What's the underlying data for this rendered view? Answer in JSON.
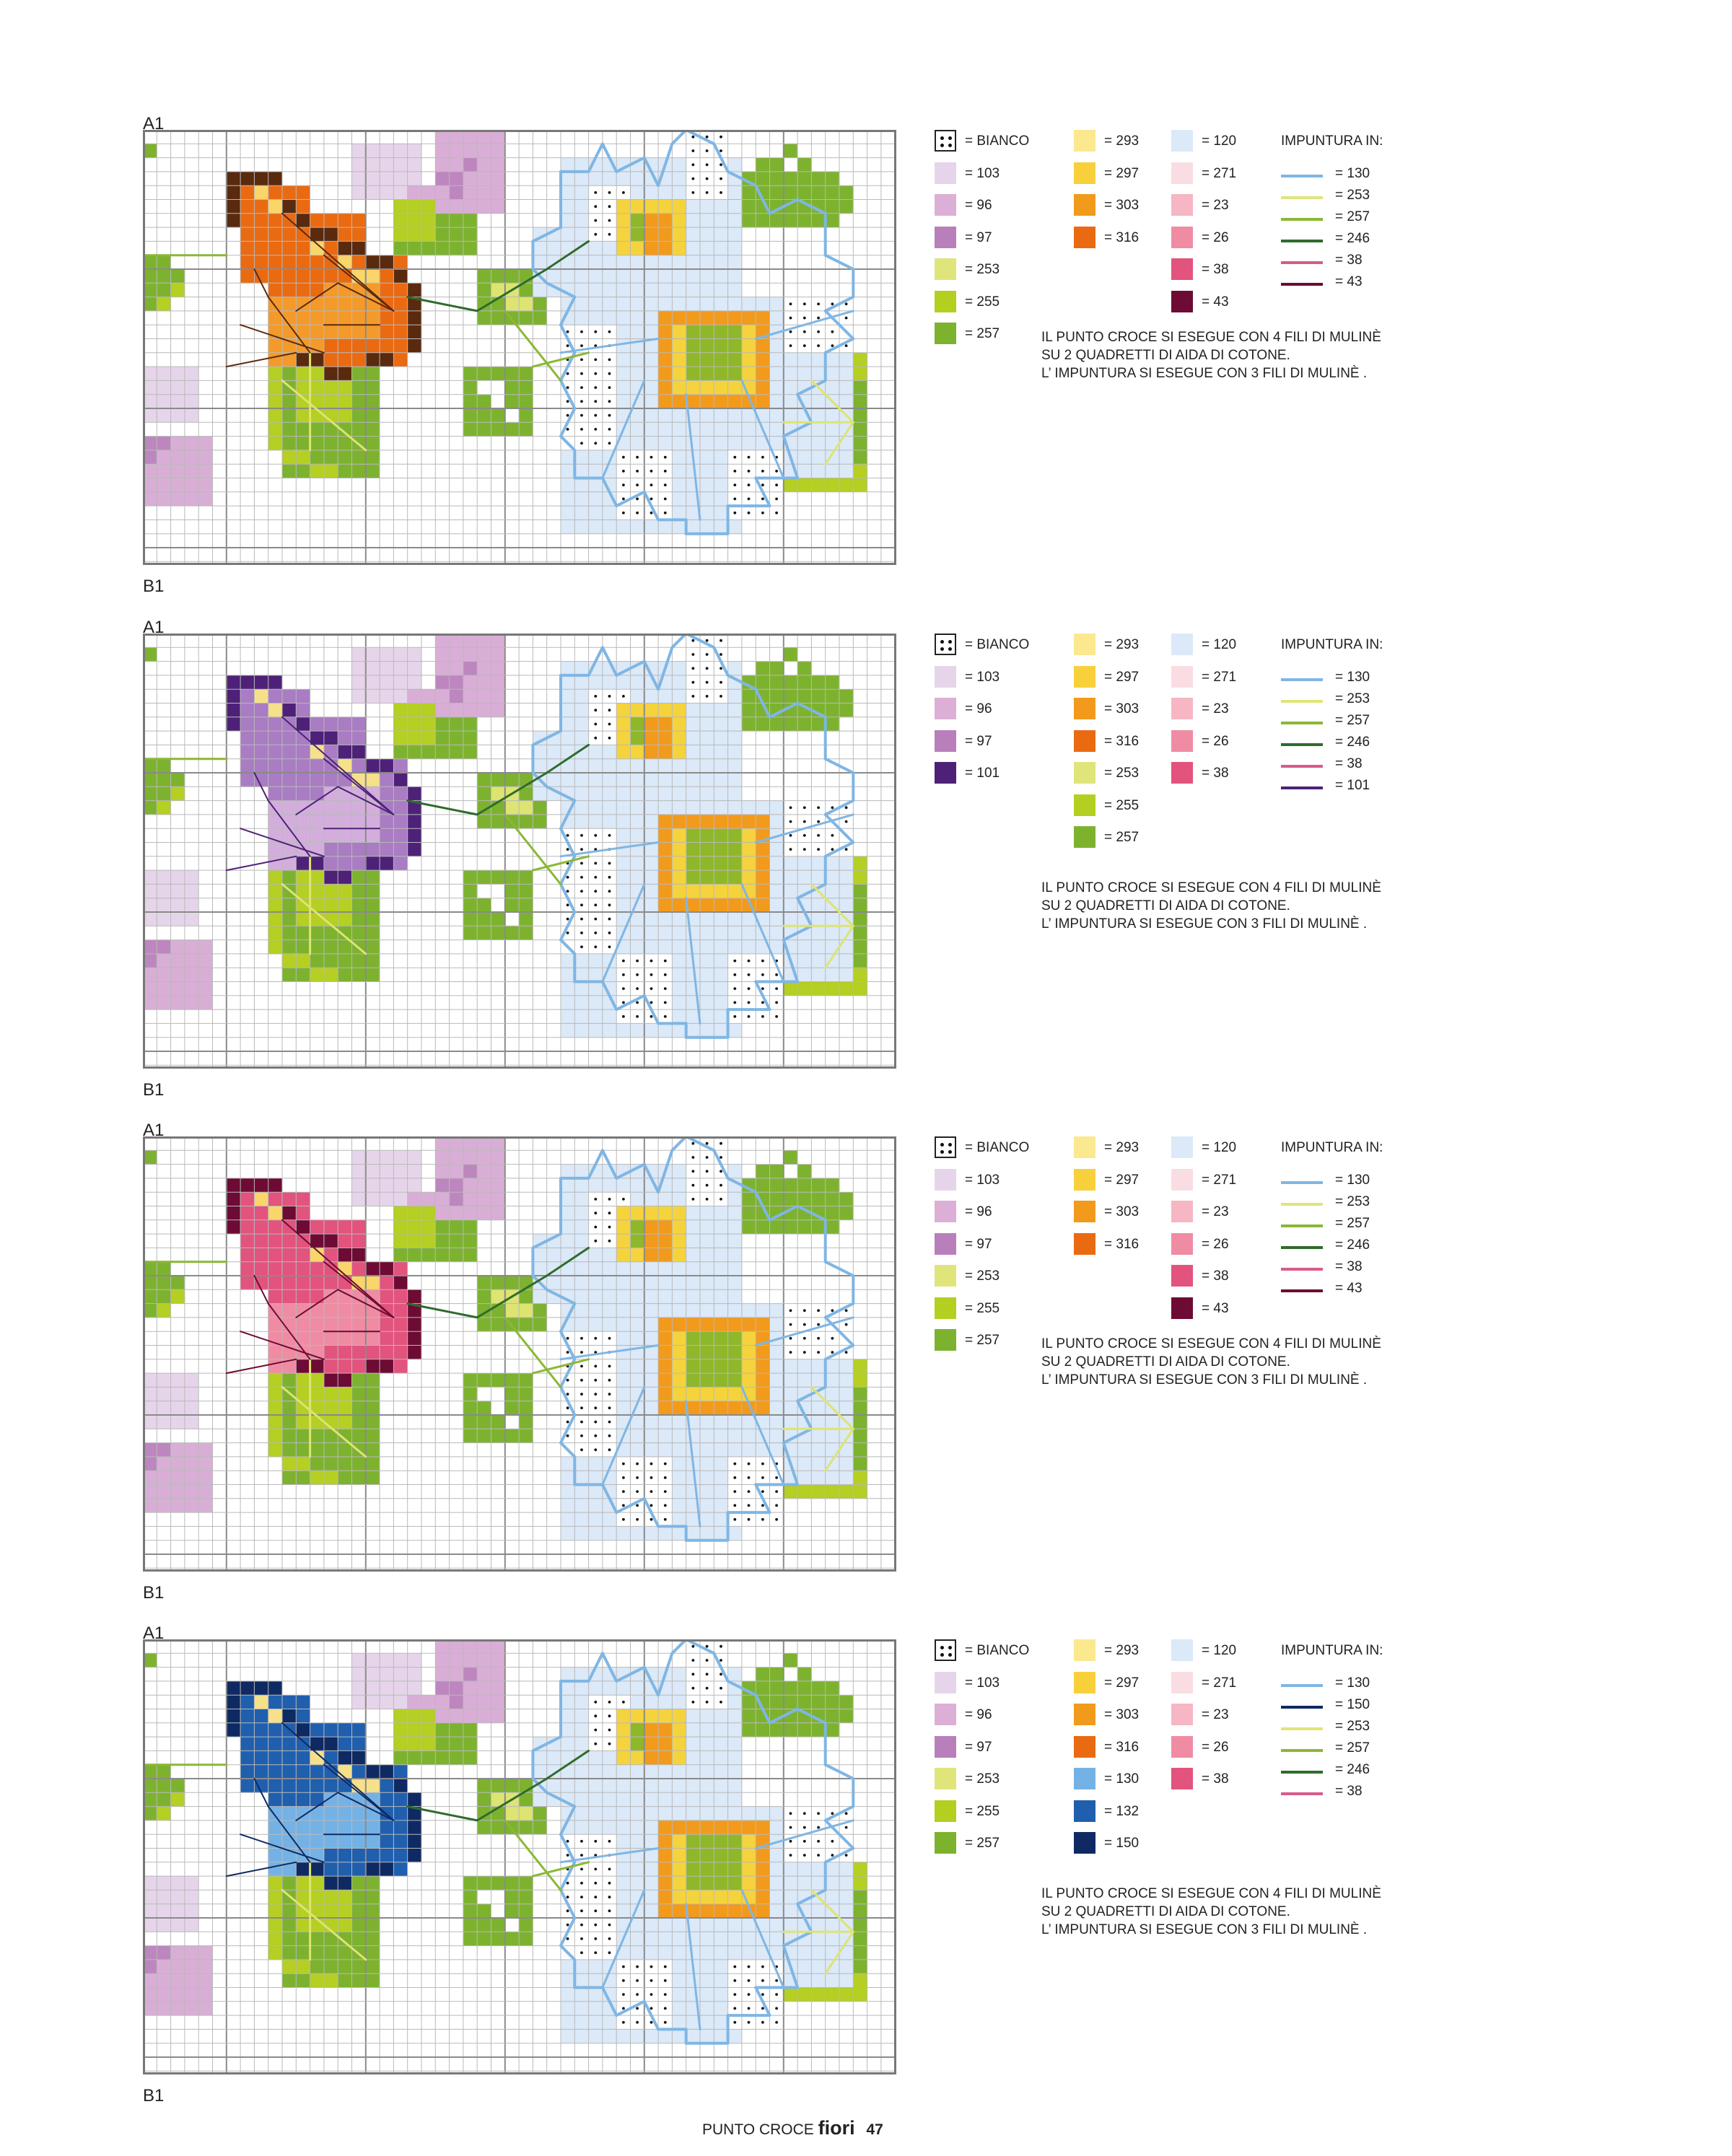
{
  "labels": {
    "a": "A1",
    "b": "B1"
  },
  "note_lines": [
    "IL PUNTO CROCE SI ESEGUE CON 4 FILI DI MULINÈ",
    "SU 2 QUADRETTI DI AIDA DI COTONE.",
    "L’ IMPUNTURA SI ESEGUE CON 3 FILI DI MULINÈ ."
  ],
  "impuntura_title": "IMPUNTURA IN:",
  "bianco_label": "= BIANCO",
  "footer": {
    "text": "PUNTO CROCE",
    "brand": "fiori",
    "page": "47"
  },
  "grid_colors": {
    "grid_line": "#b9b9b9",
    "major_line": "#8a8a8a",
    "frame": "#777777",
    "daisy_outline": "#7fb6e4",
    "daisy_fill": "#dbe9f8",
    "daisy_center_green": "#8fb72a",
    "daisy_center_yellow": "#f5d33c",
    "daisy_center_orange": "#f29a1b",
    "lilac_light": "#e6d5ea",
    "lilac_mid": "#d9aed6",
    "lilac_dark": "#bd86bf",
    "leaf_dark": "#7db22f",
    "leaf_light": "#b5cf22",
    "leaf_pale": "#dde472",
    "stem_dark": "#2f6b2c",
    "stem_light": "#8ab835"
  },
  "charts": [
    {
      "butterfly": {
        "dark": "#5a2a0e",
        "mid": "#ea6a12",
        "light": "#f39a2a",
        "pale": "#f9d56a",
        "vein": "#5a2a0e"
      },
      "legend": [
        [
          {
            "color": "BIANCO",
            "label": "= BIANCO"
          },
          {
            "color": "#e6d5ea",
            "label": "= 103"
          },
          {
            "color": "#dcb0d6",
            "label": "= 96"
          },
          {
            "color": "#b97fbb",
            "label": "= 97"
          },
          {
            "color": "#dfe57a",
            "label": "= 253"
          },
          {
            "color": "#b4cf1f",
            "label": "= 255"
          },
          {
            "color": "#7db22f",
            "label": "= 257"
          }
        ],
        [
          {
            "color": "#fbe88f",
            "label": "= 293"
          },
          {
            "color": "#f8d03c",
            "label": "= 297"
          },
          {
            "color": "#f29a1b",
            "label": "= 303"
          },
          {
            "color": "#ea6a12",
            "label": "= 316"
          }
        ],
        [
          {
            "color": "#dbe9f8",
            "label": "= 120"
          },
          {
            "color": "#fadde3",
            "label": "= 271"
          },
          {
            "color": "#f6b6c3",
            "label": "= 23"
          },
          {
            "color": "#ef8ca4",
            "label": "= 26"
          },
          {
            "color": "#e2537e",
            "label": "= 38"
          },
          {
            "color": "#6d0b34",
            "label": "= 43"
          }
        ]
      ],
      "impuntura": [
        {
          "color": "#7fb6e4",
          "label": "= 130"
        },
        {
          "color": "#dfe57a",
          "label": "= 253"
        },
        {
          "color": "#8ab835",
          "label": "= 257"
        },
        {
          "color": "#2f6b2c",
          "label": "= 246"
        },
        {
          "color": "#d95a8c",
          "label": "= 38"
        },
        {
          "color": "#6d0b34",
          "label": "= 43"
        }
      ]
    },
    {
      "butterfly": {
        "dark": "#4e2178",
        "mid": "#a97cc3",
        "light": "#d3aedc",
        "pale": "#f6e08a",
        "vein": "#4e2178"
      },
      "legend": [
        [
          {
            "color": "BIANCO",
            "label": "= BIANCO"
          },
          {
            "color": "#e6d5ea",
            "label": "= 103"
          },
          {
            "color": "#dcb0d6",
            "label": "= 96"
          },
          {
            "color": "#b97fbb",
            "label": "= 97"
          },
          {
            "color": "#4e2178",
            "label": "= 101"
          }
        ],
        [
          {
            "color": "#fbe88f",
            "label": "= 293"
          },
          {
            "color": "#f8d03c",
            "label": "= 297"
          },
          {
            "color": "#f29a1b",
            "label": "= 303"
          },
          {
            "color": "#ea6a12",
            "label": "= 316"
          },
          {
            "color": "#dfe57a",
            "label": "= 253"
          },
          {
            "color": "#b4cf1f",
            "label": "= 255"
          },
          {
            "color": "#7db22f",
            "label": "= 257"
          }
        ],
        [
          {
            "color": "#dbe9f8",
            "label": "= 120"
          },
          {
            "color": "#fadde3",
            "label": "= 271"
          },
          {
            "color": "#f6b6c3",
            "label": "= 23"
          },
          {
            "color": "#ef8ca4",
            "label": "= 26"
          },
          {
            "color": "#e2537e",
            "label": "= 38"
          }
        ]
      ],
      "impuntura": [
        {
          "color": "#7fb6e4",
          "label": "= 130"
        },
        {
          "color": "#dfe57a",
          "label": "= 253"
        },
        {
          "color": "#8ab835",
          "label": "= 257"
        },
        {
          "color": "#2f6b2c",
          "label": "= 246"
        },
        {
          "color": "#d95a8c",
          "label": "= 38"
        },
        {
          "color": "#4e2178",
          "label": "= 101"
        }
      ]
    },
    {
      "butterfly": {
        "dark": "#6d0b34",
        "mid": "#e2537e",
        "light": "#ef8ca4",
        "pale": "#f9d56a",
        "vein": "#6d0b34"
      },
      "legend": [
        [
          {
            "color": "BIANCO",
            "label": "= BIANCO"
          },
          {
            "color": "#e6d5ea",
            "label": "= 103"
          },
          {
            "color": "#dcb0d6",
            "label": "= 96"
          },
          {
            "color": "#b97fbb",
            "label": "= 97"
          },
          {
            "color": "#dfe57a",
            "label": "= 253"
          },
          {
            "color": "#b4cf1f",
            "label": "= 255"
          },
          {
            "color": "#7db22f",
            "label": "= 257"
          }
        ],
        [
          {
            "color": "#fbe88f",
            "label": "= 293"
          },
          {
            "color": "#f8d03c",
            "label": "= 297"
          },
          {
            "color": "#f29a1b",
            "label": "= 303"
          },
          {
            "color": "#ea6a12",
            "label": "= 316"
          }
        ],
        [
          {
            "color": "#dbe9f8",
            "label": "= 120"
          },
          {
            "color": "#fadde3",
            "label": "= 271"
          },
          {
            "color": "#f6b6c3",
            "label": "= 23"
          },
          {
            "color": "#ef8ca4",
            "label": "= 26"
          },
          {
            "color": "#e2537e",
            "label": "= 38"
          },
          {
            "color": "#6d0b34",
            "label": "= 43"
          }
        ]
      ],
      "impuntura": [
        {
          "color": "#7fb6e4",
          "label": "= 130"
        },
        {
          "color": "#dfe57a",
          "label": "= 253"
        },
        {
          "color": "#8ab835",
          "label": "= 257"
        },
        {
          "color": "#2f6b2c",
          "label": "= 246"
        },
        {
          "color": "#d95a8c",
          "label": "= 38"
        },
        {
          "color": "#6d0b34",
          "label": "= 43"
        }
      ]
    },
    {
      "butterfly": {
        "dark": "#0f2a63",
        "mid": "#1f5fae",
        "light": "#74b2e6",
        "pale": "#f6e08a",
        "vein": "#0f2a63"
      },
      "legend": [
        [
          {
            "color": "BIANCO",
            "label": "= BIANCO"
          },
          {
            "color": "#e6d5ea",
            "label": "= 103"
          },
          {
            "color": "#dcb0d6",
            "label": "= 96"
          },
          {
            "color": "#b97fbb",
            "label": "= 97"
          },
          {
            "color": "#dfe57a",
            "label": "= 253"
          },
          {
            "color": "#b4cf1f",
            "label": "= 255"
          },
          {
            "color": "#7db22f",
            "label": "= 257"
          }
        ],
        [
          {
            "color": "#fbe88f",
            "label": "= 293"
          },
          {
            "color": "#f8d03c",
            "label": "= 297"
          },
          {
            "color": "#f29a1b",
            "label": "= 303"
          },
          {
            "color": "#ea6a12",
            "label": "= 316"
          },
          {
            "color": "#74b2e6",
            "label": "= 130"
          },
          {
            "color": "#1f5fae",
            "label": "= 132"
          },
          {
            "color": "#0f2a63",
            "label": "= 150"
          }
        ],
        [
          {
            "color": "#dbe9f8",
            "label": "= 120"
          },
          {
            "color": "#fadde3",
            "label": "= 271"
          },
          {
            "color": "#f6b6c3",
            "label": "= 23"
          },
          {
            "color": "#ef8ca4",
            "label": "= 26"
          },
          {
            "color": "#e2537e",
            "label": "= 38"
          }
        ]
      ],
      "impuntura": [
        {
          "color": "#7fb6e4",
          "label": "= 130"
        },
        {
          "color": "#0f2a63",
          "label": "= 150"
        },
        {
          "color": "#dfe57a",
          "label": "= 253"
        },
        {
          "color": "#8ab835",
          "label": "= 257"
        },
        {
          "color": "#2f6b2c",
          "label": "= 246"
        },
        {
          "color": "#d95a8c",
          "label": "= 38"
        }
      ]
    }
  ]
}
